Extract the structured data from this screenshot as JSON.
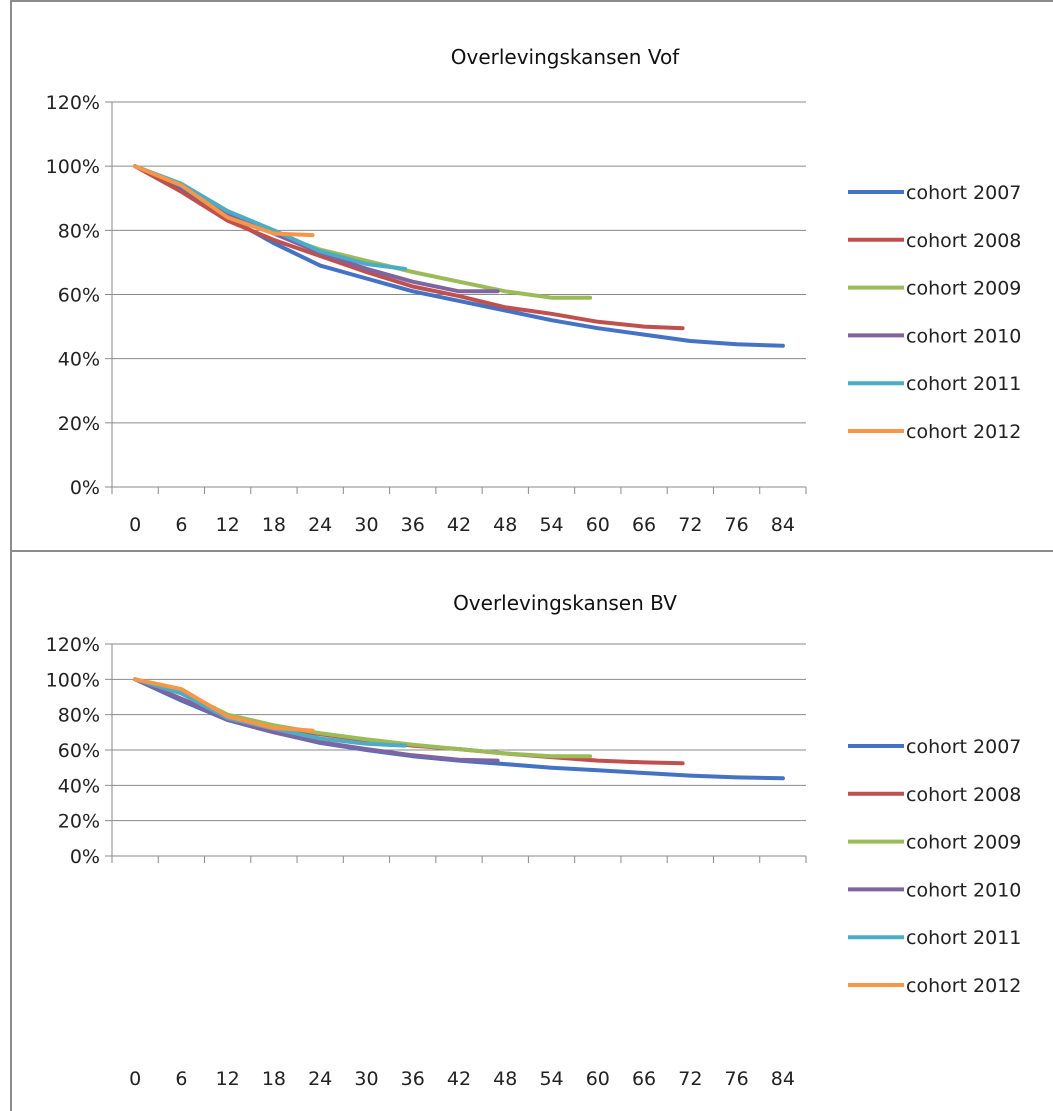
{
  "colors": {
    "cohort 2007": "#4472c4",
    "cohort 2008": "#c0504d",
    "cohort 2009": "#9bbb59",
    "cohort 2010": "#8064a2",
    "cohort 2011": "#4bacc6",
    "cohort 2012": "#f79646"
  },
  "chart_data": [
    {
      "type": "line",
      "title": "Overlevingskansen Vof",
      "xlabel": "",
      "ylabel": "",
      "x_ticks": [
        "0",
        "6",
        "12",
        "18",
        "24",
        "30",
        "36",
        "42",
        "48",
        "54",
        "60",
        "66",
        "72",
        "76",
        "84"
      ],
      "y_ticks": [
        "0%",
        "20%",
        "40%",
        "60%",
        "80%",
        "100%",
        "120%"
      ],
      "ylim": [
        0,
        120
      ],
      "grid": true,
      "legend": "right",
      "series": [
        {
          "name": "cohort 2007",
          "x": [
            0,
            6,
            12,
            18,
            24,
            30,
            36,
            42,
            48,
            54,
            60,
            66,
            72,
            78,
            84
          ],
          "values": [
            100,
            93,
            84,
            76,
            69,
            65,
            61,
            58,
            55,
            52,
            49.5,
            47.5,
            45.5,
            44.5,
            44
          ]
        },
        {
          "name": "cohort 2008",
          "x": [
            0,
            6,
            12,
            18,
            24,
            30,
            36,
            42,
            48,
            54,
            60,
            66,
            71
          ],
          "values": [
            100,
            92,
            83,
            77,
            72,
            67,
            62.5,
            59.5,
            56,
            54,
            51.5,
            50,
            49.5
          ]
        },
        {
          "name": "cohort 2009",
          "x": [
            0,
            6,
            12,
            18,
            24,
            30,
            36,
            42,
            48,
            54,
            59
          ],
          "values": [
            100,
            94,
            85,
            79,
            74,
            70.5,
            67,
            64,
            61,
            59,
            59
          ]
        },
        {
          "name": "cohort 2010",
          "x": [
            0,
            6,
            12,
            18,
            24,
            30,
            36,
            42,
            47
          ],
          "values": [
            100,
            94,
            85,
            79,
            73,
            68,
            64,
            61,
            61
          ]
        },
        {
          "name": "cohort 2011",
          "x": [
            0,
            6,
            12,
            18,
            24,
            30,
            35
          ],
          "values": [
            100,
            94.5,
            86,
            80,
            73.5,
            69.5,
            68
          ]
        },
        {
          "name": "cohort 2012",
          "x": [
            0,
            6,
            12,
            18,
            23
          ],
          "values": [
            100,
            94,
            84,
            79,
            78.5
          ]
        }
      ]
    },
    {
      "type": "line",
      "title": "Overlevingskansen BV",
      "xlabel": "",
      "ylabel": "",
      "x_ticks": [
        "0",
        "6",
        "12",
        "18",
        "24",
        "30",
        "36",
        "42",
        "48",
        "54",
        "60",
        "66",
        "72",
        "76",
        "84"
      ],
      "y_ticks": [
        "0%",
        "20%",
        "40%",
        "60%",
        "80%",
        "100%",
        "120%"
      ],
      "ylim": [
        0,
        120
      ],
      "grid": true,
      "legend": "right",
      "series": [
        {
          "name": "cohort 2007",
          "x": [
            0,
            6,
            12,
            18,
            24,
            30,
            36,
            42,
            48,
            54,
            60,
            66,
            72,
            78,
            84
          ],
          "values": [
            100,
            88,
            77,
            70,
            64,
            60,
            56.5,
            54,
            52,
            50,
            48.5,
            47,
            45.5,
            44.5,
            44
          ]
        },
        {
          "name": "cohort 2008",
          "x": [
            0,
            6,
            12,
            18,
            24,
            30,
            36,
            42,
            48,
            54,
            60,
            66,
            71
          ],
          "values": [
            100,
            89,
            78,
            73,
            69,
            65.5,
            62.5,
            60.5,
            58,
            56,
            54,
            53,
            52.5
          ]
        },
        {
          "name": "cohort 2009",
          "x": [
            0,
            6,
            12,
            18,
            24,
            30,
            36,
            42,
            48,
            54,
            59
          ],
          "values": [
            100,
            93,
            80,
            74,
            69.5,
            66,
            63,
            60.5,
            58,
            56.5,
            56.5
          ]
        },
        {
          "name": "cohort 2010",
          "x": [
            0,
            6,
            12,
            18,
            24,
            30,
            36,
            42,
            47
          ],
          "values": [
            100,
            89,
            77,
            70,
            64.5,
            60.5,
            57,
            54.5,
            54
          ]
        },
        {
          "name": "cohort 2011",
          "x": [
            0,
            6,
            12,
            18,
            24,
            30,
            35
          ],
          "values": [
            100,
            92,
            78,
            72,
            66.5,
            63.5,
            62.5
          ]
        },
        {
          "name": "cohort 2012",
          "x": [
            0,
            6,
            12,
            18,
            23
          ],
          "values": [
            100,
            94.5,
            79,
            72.5,
            71
          ]
        }
      ]
    }
  ]
}
